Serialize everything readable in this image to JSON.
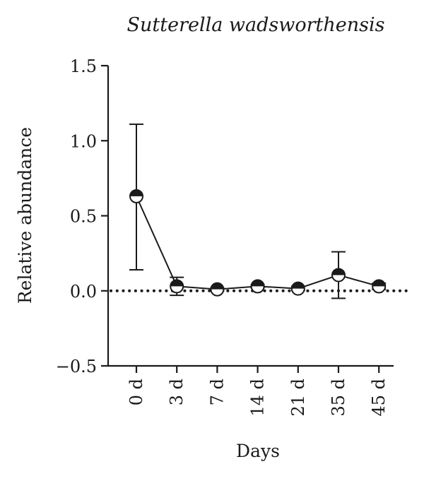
{
  "chart_data": {
    "type": "line",
    "title": "Sutterella wadsworthensis",
    "xlabel": "Days",
    "ylabel": "Relative abundance",
    "categories": [
      "0 d",
      "3 d",
      "7 d",
      "14 d",
      "21 d",
      "35 d",
      "45 d"
    ],
    "series": [
      {
        "values": [
          0.63,
          0.03,
          0.01,
          0.03,
          0.015,
          0.105,
          0.03
        ],
        "error_upper": [
          1.11,
          0.09,
          0.02,
          0.04,
          0.03,
          0.26,
          0.05
        ],
        "error_lower": [
          0.14,
          -0.03,
          0.0,
          0.02,
          0.005,
          -0.05,
          0.01
        ]
      }
    ],
    "ylim": [
      -0.5,
      1.5
    ],
    "yticks": [
      -0.5,
      0.0,
      0.5,
      1.0,
      1.5
    ],
    "ytick_labels": [
      "−0.5",
      "0.0",
      "0.5",
      "1.0",
      "1.5"
    ],
    "reference_line": {
      "y": 0,
      "style": "dotted"
    },
    "marker": "half-filled circle",
    "grid": false,
    "colors": {
      "line": "#1a1a1a",
      "marker_fill": "#1a1a1a",
      "marker_hollow": "#ffffff"
    }
  }
}
